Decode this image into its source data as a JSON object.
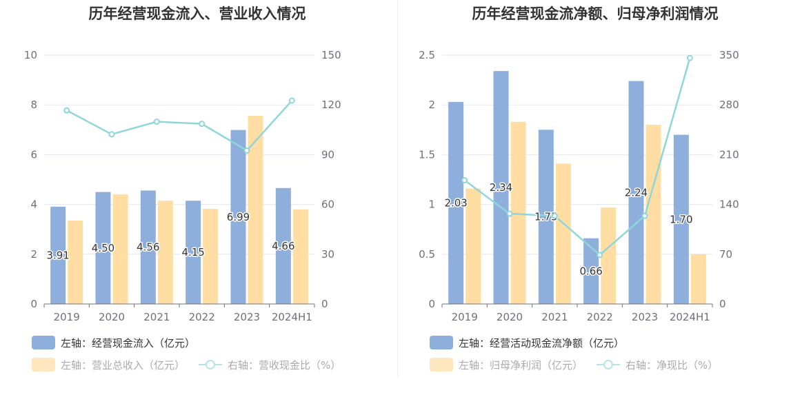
{
  "colors": {
    "bar1": "#8eaedb",
    "bar2": "#ffdda3",
    "line": "#8fd6da",
    "grid": "#e4e7ee",
    "axis": "#6e7079"
  },
  "chart_data": [
    {
      "type": "bar",
      "title": "历年经营现金流入、营业收入情况",
      "categories": [
        "2019",
        "2020",
        "2021",
        "2022",
        "2023",
        "2024H1"
      ],
      "y_left": {
        "ylim": [
          0,
          10
        ],
        "ticks": [
          "0",
          "2",
          "4",
          "6",
          "8",
          "10"
        ]
      },
      "y_right": {
        "ylim": [
          0,
          150
        ],
        "ticks": [
          "0",
          "30",
          "60",
          "90",
          "120",
          "150"
        ]
      },
      "series": [
        {
          "name": "左轴：经营现金流入（亿元）",
          "type": "bar",
          "axis": "left",
          "values": [
            3.91,
            4.5,
            4.56,
            4.15,
            6.99,
            4.66
          ],
          "labels": [
            "3.91",
            "4.50",
            "4.56",
            "4.15",
            "6.99",
            "4.66"
          ]
        },
        {
          "name": "左轴：营业总收入（亿元）",
          "type": "bar",
          "axis": "left",
          "values": [
            3.35,
            4.4,
            4.15,
            3.82,
            7.56,
            3.8
          ]
        },
        {
          "name": "右轴：营收现金比（%）",
          "type": "line",
          "axis": "right",
          "values": [
            116.7,
            102.3,
            109.9,
            108.6,
            92.5,
            122.6
          ]
        }
      ],
      "legend": "bottom-left"
    },
    {
      "type": "bar",
      "title": "历年经营现金流净额、归母净利润情况",
      "categories": [
        "2019",
        "2020",
        "2021",
        "2022",
        "2023",
        "2024H1"
      ],
      "y_left": {
        "ylim": [
          0,
          2.5
        ],
        "ticks": [
          "0",
          "0.5",
          "1",
          "1.5",
          "2",
          "2.5"
        ]
      },
      "y_right": {
        "ylim": [
          0,
          350
        ],
        "ticks": [
          "0",
          "70",
          "140",
          "210",
          "280",
          "350"
        ]
      },
      "series": [
        {
          "name": "左轴：经营活动现金流净额（亿元）",
          "type": "bar",
          "axis": "left",
          "values": [
            2.03,
            2.34,
            1.75,
            0.66,
            2.24,
            1.7
          ],
          "labels": [
            "2.03",
            "2.34",
            "1.75",
            "0.66",
            "2.24",
            "1.70"
          ]
        },
        {
          "name": "左轴：归母净利润（亿元）",
          "type": "bar",
          "axis": "left",
          "values": [
            1.16,
            1.83,
            1.41,
            0.97,
            1.8,
            0.5
          ]
        },
        {
          "name": "右轴：净现比（%）",
          "type": "line",
          "axis": "right",
          "values": [
            174,
            127,
            124,
            69,
            124,
            346
          ]
        }
      ],
      "legend": "bottom-left"
    }
  ]
}
